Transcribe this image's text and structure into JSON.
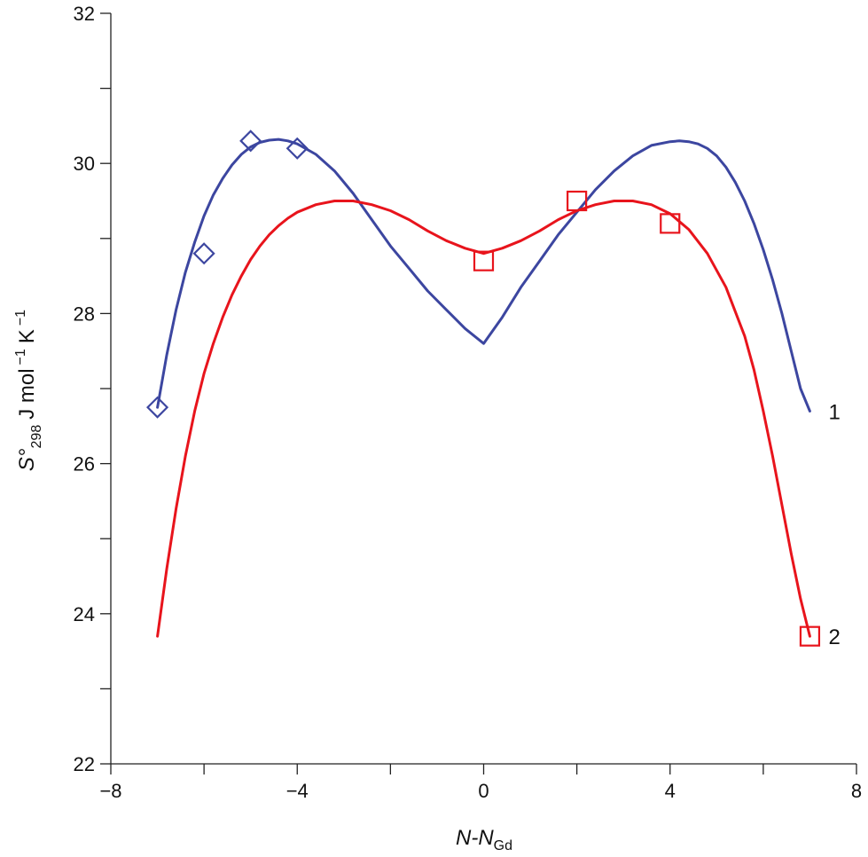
{
  "chart_data": {
    "type": "line",
    "title": "",
    "xlabel": {
      "main": "N-N",
      "sub": "Gd"
    },
    "ylabel": {
      "main": "S°",
      "sub": "298",
      "unit": "J mol",
      "exp1": "−1",
      "unit2": "K",
      "exp2": "−1"
    },
    "xlim": [
      -8,
      8
    ],
    "ylim": [
      22,
      32
    ],
    "x_ticks": [
      -8,
      -4,
      0,
      4,
      8
    ],
    "x_tick_labels": [
      "−8",
      "−4",
      "0",
      "4",
      "8"
    ],
    "y_ticks": [
      22,
      24,
      26,
      28,
      30,
      32
    ],
    "y_tick_labels": [
      "22",
      "24",
      "26",
      "28",
      "30",
      "32"
    ],
    "grid": false,
    "series": [
      {
        "name": "1",
        "color": "#3c46a0",
        "marker": "diamond",
        "line_x": [
          -7,
          -6.8,
          -6.6,
          -6.4,
          -6.2,
          -6,
          -5.8,
          -5.6,
          -5.4,
          -5.2,
          -5,
          -4.8,
          -4.6,
          -4.4,
          -4.2,
          -4,
          -3.6,
          -3.2,
          -2.8,
          -2.4,
          -2,
          -1.6,
          -1.2,
          -0.8,
          -0.4,
          0,
          0.4,
          0.8,
          1.2,
          1.6,
          2,
          2.4,
          2.8,
          3.2,
          3.6,
          4,
          4.2,
          4.4,
          4.6,
          4.8,
          5,
          5.2,
          5.4,
          5.6,
          5.8,
          6,
          6.2,
          6.4,
          6.6,
          6.8,
          7
        ],
        "line_y": [
          26.75,
          27.45,
          28.05,
          28.55,
          28.95,
          29.3,
          29.58,
          29.8,
          29.98,
          30.12,
          30.22,
          30.28,
          30.31,
          30.32,
          30.3,
          30.26,
          30.12,
          29.9,
          29.6,
          29.25,
          28.9,
          28.6,
          28.3,
          28.05,
          27.8,
          27.6,
          27.95,
          28.35,
          28.7,
          29.05,
          29.35,
          29.65,
          29.9,
          30.1,
          30.24,
          30.29,
          30.3,
          30.29,
          30.26,
          30.2,
          30.1,
          29.95,
          29.75,
          29.5,
          29.2,
          28.85,
          28.45,
          28.0,
          27.5,
          27.0,
          26.7
        ],
        "points_x": [
          -7,
          -6,
          -5,
          -4
        ],
        "points_y": [
          26.75,
          28.8,
          30.3,
          30.2
        ]
      },
      {
        "name": "2",
        "color": "#e8141c",
        "marker": "square",
        "line_x": [
          -7,
          -6.8,
          -6.6,
          -6.4,
          -6.2,
          -6,
          -5.8,
          -5.6,
          -5.4,
          -5.2,
          -5,
          -4.8,
          -4.6,
          -4.4,
          -4.2,
          -4,
          -3.6,
          -3.2,
          -2.8,
          -2.4,
          -2,
          -1.6,
          -1.2,
          -0.8,
          -0.4,
          0,
          0.4,
          0.8,
          1.2,
          1.6,
          2,
          2.4,
          2.8,
          3.2,
          3.6,
          4,
          4.4,
          4.8,
          5.2,
          5.6,
          5.8,
          6,
          6.2,
          6.4,
          6.6,
          6.8,
          7
        ],
        "line_y": [
          23.7,
          24.6,
          25.4,
          26.1,
          26.7,
          27.2,
          27.6,
          27.95,
          28.25,
          28.5,
          28.72,
          28.9,
          29.05,
          29.17,
          29.27,
          29.35,
          29.45,
          29.5,
          29.5,
          29.45,
          29.37,
          29.25,
          29.1,
          28.97,
          28.87,
          28.8,
          28.87,
          28.97,
          29.1,
          29.25,
          29.37,
          29.45,
          29.5,
          29.5,
          29.45,
          29.33,
          29.12,
          28.8,
          28.35,
          27.7,
          27.25,
          26.7,
          26.1,
          25.45,
          24.8,
          24.2,
          23.7
        ],
        "points_x": [
          0,
          2,
          4,
          7
        ],
        "points_y": [
          28.7,
          29.5,
          29.2,
          23.7
        ]
      }
    ],
    "curve_labels": [
      {
        "text": "1",
        "x": 7.4,
        "y": 26.7
      },
      {
        "text": "2",
        "x": 7.4,
        "y": 23.7
      }
    ]
  }
}
